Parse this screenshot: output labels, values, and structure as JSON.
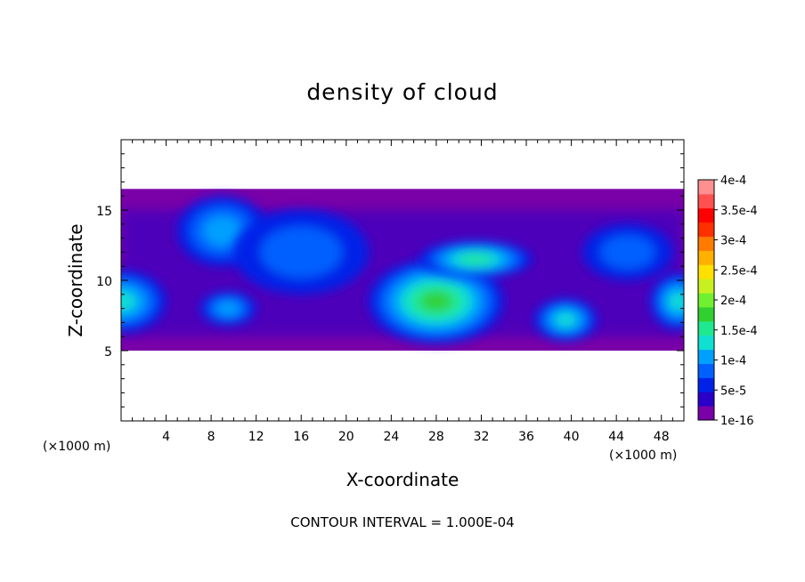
{
  "chart_data": {
    "type": "heatmap",
    "title": "density of cloud",
    "xlabel": "X-coordinate",
    "ylabel": "Z-coordinate",
    "x_unit": "(×1000 m)",
    "x_ticks": [
      "4",
      "8",
      "12",
      "16",
      "20",
      "24",
      "28",
      "32",
      "36",
      "40",
      "44",
      "48"
    ],
    "y_ticks": [
      "5",
      "10",
      "15"
    ],
    "xlim": [
      0,
      50
    ],
    "ylim": [
      0,
      20
    ],
    "colorbar": {
      "labels": [
        "1e-16",
        "5e-5",
        "1e-4",
        "1.5e-4",
        "2e-4",
        "2.5e-4",
        "3e-4",
        "3.5e-4",
        "4e-4"
      ],
      "colors": [
        "#7a00a8",
        "#2a00c8",
        "#0022e8",
        "#0060ff",
        "#00a0ff",
        "#10e0d0",
        "#20e890",
        "#30d030",
        "#70f030",
        "#c8f020",
        "#ffe000",
        "#ffb000",
        "#ff7a00",
        "#ff3000",
        "#ff0000",
        "#ff5050",
        "#ff9090"
      ]
    },
    "contour_interval_label": "CONTOUR INTERVAL = 1.000E-04",
    "cloud_field": {
      "base_z": 5,
      "top_z": 16.5,
      "cores": [
        {
          "x": 0,
          "z": 8.5,
          "rx": 4,
          "rz": 2.2,
          "level": 4
        },
        {
          "x": 9.5,
          "z": 8,
          "rx": 2.5,
          "rz": 1.2,
          "level": 3
        },
        {
          "x": 9,
          "z": 13.5,
          "rx": 4,
          "rz": 2.5,
          "level": 3
        },
        {
          "x": 28,
          "z": 8.5,
          "rx": 6,
          "rz": 3,
          "level": 6
        },
        {
          "x": 31.5,
          "z": 11.5,
          "rx": 5,
          "rz": 1.3,
          "level": 5
        },
        {
          "x": 39.5,
          "z": 7.2,
          "rx": 2.8,
          "rz": 1.5,
          "level": 4
        },
        {
          "x": 49.5,
          "z": 8.5,
          "rx": 2.5,
          "rz": 2,
          "level": 4
        },
        {
          "x": 16,
          "z": 12,
          "rx": 6,
          "rz": 3,
          "level": 2
        },
        {
          "x": 45,
          "z": 12,
          "rx": 4,
          "rz": 2,
          "level": 2
        }
      ]
    }
  }
}
